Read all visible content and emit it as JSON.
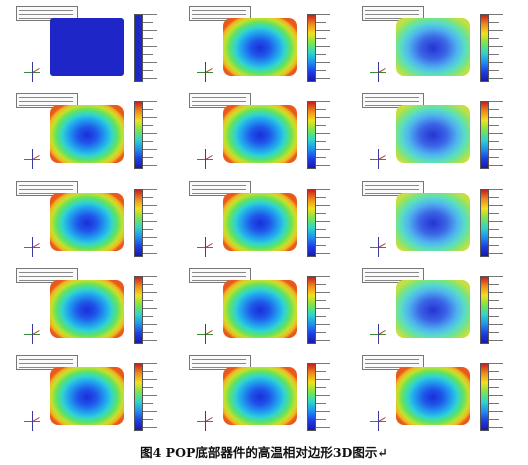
{
  "figure": {
    "caption": "图4   POP底部器件的高温相对边形3D图示↵",
    "layout": {
      "rows": 5,
      "columns": 3
    },
    "panels": [
      {
        "style": "flat"
      },
      {
        "style": "warp"
      },
      {
        "style": "mild"
      },
      {
        "style": "warp"
      },
      {
        "style": "warp"
      },
      {
        "style": "mild"
      },
      {
        "style": "warp"
      },
      {
        "style": "warp"
      },
      {
        "style": "mild"
      },
      {
        "style": "warp"
      },
      {
        "style": "warp"
      },
      {
        "style": "mild"
      },
      {
        "style": "warp"
      },
      {
        "style": "warp"
      },
      {
        "style": "warp"
      }
    ],
    "colormap": {
      "first_panel": "#1e26c8",
      "low": "#1a1aa8",
      "mid": "#7ee44a",
      "high": "#c81e1e"
    }
  }
}
